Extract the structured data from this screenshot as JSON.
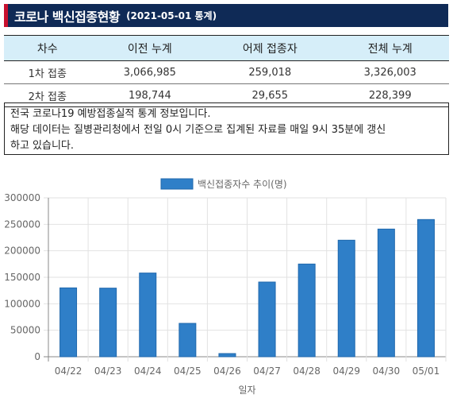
{
  "header": {
    "title": "코로나 백신접종현황",
    "subtitle": "(2021-05-01 통계)"
  },
  "table": {
    "headers": [
      "차수",
      "이전 누계",
      "어제 접종자",
      "전체 누계"
    ],
    "rows": [
      [
        "1차 접종",
        "3,066,985",
        "259,018",
        "3,326,003"
      ],
      [
        "2차 접종",
        "198,744",
        "29,655",
        "228,399"
      ]
    ]
  },
  "note": {
    "line1": "전국 코로나19 예방접종실적 통계 정보입니다.",
    "line2": "해당 데이터는 질병관리청에서 전일 0시 기준으로 집계된 자료를 매일 9시 35분에 갱신",
    "line3": "하고 있습니다."
  },
  "colors": {
    "header_bg": "#0f2a56",
    "header_accent": "#c8102e",
    "table_header_bg": "#d6eef9",
    "bar": "#2f7fc8"
  },
  "chart_data": {
    "type": "bar",
    "categories": [
      "04/22",
      "04/23",
      "04/24",
      "04/25",
      "04/26",
      "04/27",
      "04/28",
      "04/29",
      "04/30",
      "05/01"
    ],
    "series": [
      {
        "name": "백신접종자수 추이(명)",
        "values": [
          130000,
          129500,
          158000,
          63000,
          6000,
          141000,
          175000,
          220000,
          241000,
          259018
        ]
      }
    ],
    "xlabel": "일자",
    "ylabel": "",
    "ylim": [
      0,
      300000
    ],
    "yticks": [
      0,
      50000,
      100000,
      150000,
      200000,
      250000,
      300000
    ],
    "yticklabels": [
      "0",
      "50000",
      "100000",
      "150000",
      "200000",
      "250000",
      "300000"
    ],
    "grid": true,
    "legend": "top-center"
  }
}
